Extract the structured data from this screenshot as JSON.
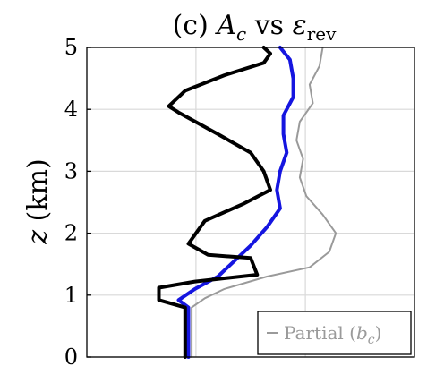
{
  "chart_data": {
    "type": "line",
    "title": "(c) A_c vs ε_rev",
    "title_parts": {
      "prefix": "(c) ",
      "main": "A",
      "sub": "c",
      "mid": " vs ",
      "eps": "ε",
      "eps_sub": "rev"
    },
    "xlabel": "",
    "ylabel": "z (km)",
    "ylabel_parts": {
      "var": "z",
      "unit": " (km)"
    },
    "xlim": [
      0,
      1
    ],
    "ylim": [
      0,
      5
    ],
    "yticks": [
      0,
      1,
      2,
      3,
      4,
      5
    ],
    "xgrid": [
      0.333,
      0.667
    ],
    "grid": true,
    "series": [
      {
        "color": "#000000",
        "width": 4,
        "points": [
          [
            0.3,
            0.0
          ],
          [
            0.3,
            0.8
          ],
          [
            0.22,
            0.92
          ],
          [
            0.22,
            1.12
          ],
          [
            0.33,
            1.22
          ],
          [
            0.52,
            1.33
          ],
          [
            0.5,
            1.6
          ],
          [
            0.37,
            1.65
          ],
          [
            0.31,
            1.83
          ],
          [
            0.36,
            2.2
          ],
          [
            0.48,
            2.48
          ],
          [
            0.56,
            2.7
          ],
          [
            0.54,
            3.0
          ],
          [
            0.5,
            3.3
          ],
          [
            0.4,
            3.6
          ],
          [
            0.28,
            3.95
          ],
          [
            0.25,
            4.05
          ],
          [
            0.3,
            4.3
          ],
          [
            0.42,
            4.55
          ],
          [
            0.54,
            4.75
          ],
          [
            0.56,
            4.9
          ],
          [
            0.54,
            5.0
          ]
        ]
      },
      {
        "color": "#1515e0",
        "width": 4,
        "points": [
          [
            0.31,
            0.0
          ],
          [
            0.31,
            0.8
          ],
          [
            0.28,
            0.92
          ],
          [
            0.33,
            1.1
          ],
          [
            0.4,
            1.3
          ],
          [
            0.45,
            1.55
          ],
          [
            0.5,
            1.8
          ],
          [
            0.55,
            2.1
          ],
          [
            0.59,
            2.4
          ],
          [
            0.58,
            2.7
          ],
          [
            0.59,
            3.0
          ],
          [
            0.61,
            3.3
          ],
          [
            0.6,
            3.6
          ],
          [
            0.6,
            3.9
          ],
          [
            0.63,
            4.2
          ],
          [
            0.63,
            4.5
          ],
          [
            0.62,
            4.8
          ],
          [
            0.59,
            5.0
          ]
        ]
      },
      {
        "color": "#9a9a9a",
        "width": 2,
        "points": [
          [
            0.32,
            0.0
          ],
          [
            0.32,
            0.8
          ],
          [
            0.36,
            0.95
          ],
          [
            0.42,
            1.1
          ],
          [
            0.55,
            1.3
          ],
          [
            0.68,
            1.45
          ],
          [
            0.74,
            1.7
          ],
          [
            0.76,
            2.0
          ],
          [
            0.72,
            2.3
          ],
          [
            0.67,
            2.6
          ],
          [
            0.65,
            2.9
          ],
          [
            0.66,
            3.2
          ],
          [
            0.64,
            3.5
          ],
          [
            0.65,
            3.8
          ],
          [
            0.69,
            4.1
          ],
          [
            0.68,
            4.4
          ],
          [
            0.71,
            4.7
          ],
          [
            0.72,
            5.0
          ]
        ]
      }
    ],
    "legend": {
      "placement": "bottom-right",
      "entries": [
        {
          "label": "Partial (b_c)",
          "text": "Partial (",
          "var": "b",
          "sub": "c",
          "close": ")",
          "color": "#9a9a9a"
        }
      ]
    }
  }
}
